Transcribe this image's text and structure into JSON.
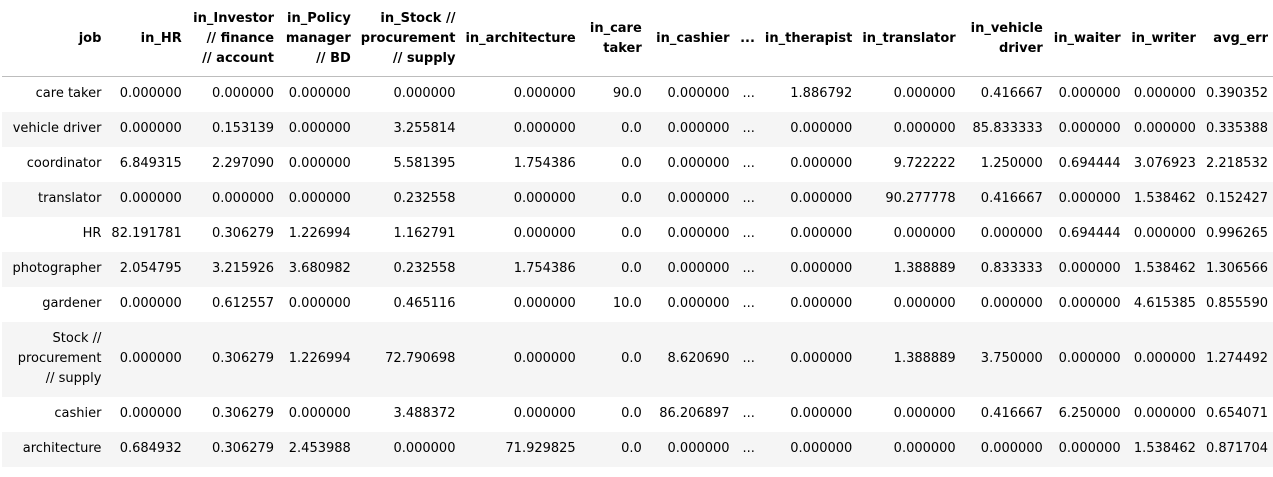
{
  "table": {
    "columns": [
      {
        "key": "in_hr",
        "label": "in_HR",
        "lines": [
          "in_HR"
        ]
      },
      {
        "key": "in_investor",
        "label": "in_Investor // finance // account",
        "lines": [
          "in_Investor",
          "// finance",
          "// account"
        ]
      },
      {
        "key": "in_policy",
        "label": "in_Policy manager // BD",
        "lines": [
          "in_Policy",
          "manager",
          "// BD"
        ]
      },
      {
        "key": "in_stock",
        "label": "in_Stock // procurement // supply",
        "lines": [
          "in_Stock //",
          "procurement",
          "// supply"
        ]
      },
      {
        "key": "in_architecture",
        "label": "in_architecture",
        "lines": [
          "in_architecture"
        ]
      },
      {
        "key": "in_care",
        "label": "in_care taker",
        "lines": [
          "in_care",
          "taker"
        ]
      },
      {
        "key": "in_cashier",
        "label": "in_cashier",
        "lines": [
          "in_cashier"
        ]
      },
      {
        "key": "ellipsis",
        "label": "...",
        "lines": [
          "..."
        ]
      },
      {
        "key": "in_therapist",
        "label": "in_therapist",
        "lines": [
          "in_therapist"
        ]
      },
      {
        "key": "in_translator",
        "label": "in_translator",
        "lines": [
          "in_translator"
        ]
      },
      {
        "key": "in_vehicle",
        "label": "in_vehicle driver",
        "lines": [
          "in_vehicle",
          "driver"
        ]
      },
      {
        "key": "in_waiter",
        "label": "in_waiter",
        "lines": [
          "in_waiter"
        ]
      },
      {
        "key": "in_writer",
        "label": "in_writer",
        "lines": [
          "in_writer"
        ]
      },
      {
        "key": "avg_err",
        "label": "avg_err",
        "lines": [
          "avg_err"
        ]
      }
    ],
    "index_header": "job",
    "rows": [
      {
        "job": [
          "care taker"
        ],
        "cells": [
          "0.000000",
          "0.000000",
          "0.000000",
          "0.000000",
          "0.000000",
          "90.0",
          "0.000000",
          "...",
          "1.886792",
          "0.000000",
          "0.416667",
          "0.000000",
          "0.000000",
          "0.390352"
        ]
      },
      {
        "job": [
          "vehicle driver"
        ],
        "cells": [
          "0.000000",
          "0.153139",
          "0.000000",
          "3.255814",
          "0.000000",
          "0.0",
          "0.000000",
          "...",
          "0.000000",
          "0.000000",
          "85.833333",
          "0.000000",
          "0.000000",
          "0.335388"
        ]
      },
      {
        "job": [
          "coordinator"
        ],
        "cells": [
          "6.849315",
          "2.297090",
          "0.000000",
          "5.581395",
          "1.754386",
          "0.0",
          "0.000000",
          "...",
          "0.000000",
          "9.722222",
          "1.250000",
          "0.694444",
          "3.076923",
          "2.218532"
        ]
      },
      {
        "job": [
          "translator"
        ],
        "cells": [
          "0.000000",
          "0.000000",
          "0.000000",
          "0.232558",
          "0.000000",
          "0.0",
          "0.000000",
          "...",
          "0.000000",
          "90.277778",
          "0.416667",
          "0.000000",
          "1.538462",
          "0.152427"
        ]
      },
      {
        "job": [
          "HR"
        ],
        "cells": [
          "82.191781",
          "0.306279",
          "1.226994",
          "1.162791",
          "0.000000",
          "0.0",
          "0.000000",
          "...",
          "0.000000",
          "0.000000",
          "0.000000",
          "0.694444",
          "0.000000",
          "0.996265"
        ]
      },
      {
        "job": [
          "photographer"
        ],
        "cells": [
          "2.054795",
          "3.215926",
          "3.680982",
          "0.232558",
          "1.754386",
          "0.0",
          "0.000000",
          "...",
          "0.000000",
          "1.388889",
          "0.833333",
          "0.000000",
          "1.538462",
          "1.306566"
        ]
      },
      {
        "job": [
          "gardener"
        ],
        "cells": [
          "0.000000",
          "0.612557",
          "0.000000",
          "0.465116",
          "0.000000",
          "10.0",
          "0.000000",
          "...",
          "0.000000",
          "0.000000",
          "0.000000",
          "0.000000",
          "4.615385",
          "0.855590"
        ]
      },
      {
        "job": [
          "Stock //",
          "procurement",
          "// supply"
        ],
        "cells": [
          "0.000000",
          "0.306279",
          "1.226994",
          "72.790698",
          "0.000000",
          "0.0",
          "8.620690",
          "...",
          "0.000000",
          "1.388889",
          "3.750000",
          "0.000000",
          "0.000000",
          "1.274492"
        ]
      },
      {
        "job": [
          "cashier"
        ],
        "cells": [
          "0.000000",
          "0.306279",
          "0.000000",
          "3.488372",
          "0.000000",
          "0.0",
          "86.206897",
          "...",
          "0.000000",
          "0.000000",
          "0.416667",
          "6.250000",
          "0.000000",
          "0.654071"
        ]
      },
      {
        "job": [
          "architecture"
        ],
        "cells": [
          "0.684932",
          "0.306279",
          "2.453988",
          "0.000000",
          "71.929825",
          "0.0",
          "0.000000",
          "...",
          "0.000000",
          "0.000000",
          "0.000000",
          "0.000000",
          "1.538462",
          "0.871704"
        ]
      }
    ]
  }
}
